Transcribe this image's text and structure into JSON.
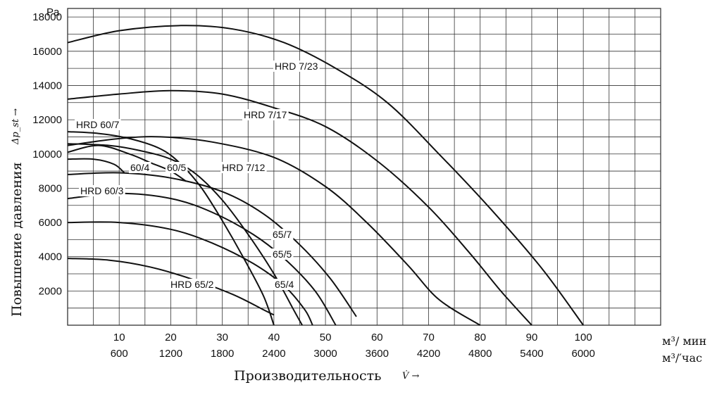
{
  "chart_data": {
    "type": "line",
    "title": "",
    "y_unit": "Pa",
    "ylabel": "Повышение давления",
    "ylabel_symbol": "Δp_st →",
    "xlabel": "Производительность",
    "xlabel_symbol": "V̇ →",
    "x_units": [
      "м³/ мин",
      "м³/′час"
    ],
    "xlim": [
      0,
      115
    ],
    "ylim": [
      0,
      18500
    ],
    "x_ticks_primary": [
      "10",
      "20",
      "30",
      "40",
      "50",
      "60",
      "70",
      "80",
      "90",
      "100"
    ],
    "x_ticks_secondary": [
      "600",
      "1200",
      "1800",
      "2400",
      "3000",
      "3600",
      "4200",
      "4800",
      "5400",
      "6000"
    ],
    "x_tick_values": [
      10,
      20,
      30,
      40,
      50,
      60,
      70,
      80,
      90,
      100
    ],
    "y_ticks": [
      "2000",
      "4000",
      "6000",
      "8000",
      "10000",
      "12000",
      "14000",
      "16000",
      "18000"
    ],
    "y_tick_values": [
      2000,
      4000,
      6000,
      8000,
      10000,
      12000,
      14000,
      16000,
      18000
    ],
    "grid": true,
    "legend": "none",
    "series": [
      {
        "name": "HRD 7/23",
        "points": [
          [
            0,
            16500
          ],
          [
            10,
            17200
          ],
          [
            22,
            17500
          ],
          [
            32,
            17300
          ],
          [
            42,
            16500
          ],
          [
            52,
            15000
          ],
          [
            62,
            13000
          ],
          [
            72,
            10000
          ],
          [
            82,
            6800
          ],
          [
            92,
            3300
          ],
          [
            100,
            0
          ]
        ]
      },
      {
        "name": "HRD 7/17",
        "points": [
          [
            0,
            13200
          ],
          [
            10,
            13500
          ],
          [
            20,
            13700
          ],
          [
            30,
            13500
          ],
          [
            40,
            12700
          ],
          [
            50,
            11600
          ],
          [
            60,
            9600
          ],
          [
            70,
            6900
          ],
          [
            78,
            4200
          ],
          [
            84,
            2000
          ],
          [
            90,
            0
          ]
        ]
      },
      {
        "name": "HRD 7/12",
        "points": [
          [
            0,
            10500
          ],
          [
            10,
            10900
          ],
          [
            18,
            11000
          ],
          [
            28,
            10700
          ],
          [
            40,
            9800
          ],
          [
            50,
            8100
          ],
          [
            58,
            6000
          ],
          [
            66,
            3500
          ],
          [
            72,
            1500
          ],
          [
            80,
            0
          ]
        ]
      },
      {
        "name": "HRD 60/7",
        "points": [
          [
            0,
            11300
          ],
          [
            6,
            11200
          ],
          [
            12,
            10900
          ],
          [
            18,
            10300
          ],
          [
            22,
            9400
          ],
          [
            26,
            8000
          ],
          [
            30,
            6100
          ],
          [
            34,
            4000
          ],
          [
            38,
            1700
          ],
          [
            40,
            0
          ]
        ]
      },
      {
        "name": "60/5",
        "points": [
          [
            0,
            10600
          ],
          [
            8,
            10500
          ],
          [
            14,
            10200
          ],
          [
            20,
            9700
          ],
          [
            25,
            8800
          ],
          [
            30,
            7300
          ],
          [
            35,
            5300
          ],
          [
            40,
            3000
          ],
          [
            44,
            800
          ],
          [
            45.5,
            0
          ]
        ]
      },
      {
        "name": "60/4",
        "points": [
          [
            0,
            10100
          ],
          [
            6,
            10500
          ],
          [
            12,
            10000
          ],
          [
            16,
            9500
          ],
          [
            20,
            9000
          ],
          [
            23,
            8400
          ]
        ]
      },
      {
        "name": "HRD 60/3",
        "points": [
          [
            0,
            9700
          ],
          [
            5,
            9700
          ],
          [
            9,
            9400
          ],
          [
            11,
            8900
          ]
        ]
      },
      {
        "name": "65/7",
        "points": [
          [
            0,
            8800
          ],
          [
            10,
            8900
          ],
          [
            20,
            8600
          ],
          [
            30,
            7800
          ],
          [
            38,
            6500
          ],
          [
            45,
            4700
          ],
          [
            51,
            2700
          ],
          [
            56,
            500
          ]
        ]
      },
      {
        "name": "65/5",
        "points": [
          [
            0,
            7400
          ],
          [
            10,
            7700
          ],
          [
            20,
            7400
          ],
          [
            28,
            6600
          ],
          [
            36,
            5300
          ],
          [
            42,
            3900
          ],
          [
            48,
            2000
          ],
          [
            52,
            0
          ]
        ]
      },
      {
        "name": "65/4",
        "points": [
          [
            0,
            6000
          ],
          [
            10,
            6000
          ],
          [
            20,
            5600
          ],
          [
            28,
            4800
          ],
          [
            36,
            3600
          ],
          [
            42,
            2300
          ],
          [
            46,
            900
          ],
          [
            47.5,
            0
          ]
        ]
      },
      {
        "name": "HRD 65/2",
        "points": [
          [
            0,
            3900
          ],
          [
            8,
            3800
          ],
          [
            16,
            3400
          ],
          [
            24,
            2700
          ],
          [
            32,
            1800
          ],
          [
            38,
            900
          ],
          [
            40,
            600
          ]
        ]
      }
    ]
  }
}
